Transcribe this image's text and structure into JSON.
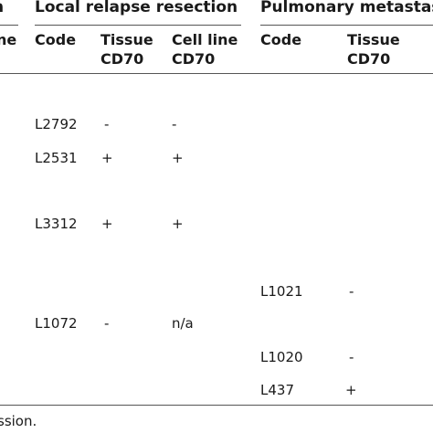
{
  "table": {
    "groups": {
      "left_fragment": "n",
      "local_relapse": "Local relapse resection",
      "pulmonary": "Pulmonary metastasi"
    },
    "subheaders": {
      "left_fragment": "ne",
      "code_a": "Code",
      "tissue_a_line1": "Tissue",
      "tissue_a_line2": "CD70",
      "cellline_a_line1": "Cell line",
      "cellline_a_line2": "CD70",
      "code_b": "Code",
      "tissue_b_line1": "Tissue",
      "tissue_b_line2": "CD70"
    },
    "rows": [
      {
        "code_a": "L2792",
        "tissue_a": "-",
        "cellline_a": "-",
        "code_b": "",
        "tissue_b": ""
      },
      {
        "code_a": "L2531",
        "tissue_a": "+",
        "cellline_a": "+",
        "code_b": "",
        "tissue_b": ""
      },
      {
        "code_a": "L3312",
        "tissue_a": "+",
        "cellline_a": "+",
        "code_b": "",
        "tissue_b": ""
      },
      {
        "code_a": "",
        "tissue_a": "",
        "cellline_a": "",
        "code_b": "L1021",
        "tissue_b": "-"
      },
      {
        "code_a": "L1072",
        "tissue_a": "-",
        "cellline_a": "n/a",
        "code_b": "",
        "tissue_b": ""
      },
      {
        "code_a": "",
        "tissue_a": "",
        "cellline_a": "",
        "code_b": "L1020",
        "tissue_b": "-"
      },
      {
        "code_a": "",
        "tissue_a": "",
        "cellline_a": "",
        "code_b": "L437",
        "tissue_b": "+"
      }
    ],
    "footnote": "ssion."
  }
}
